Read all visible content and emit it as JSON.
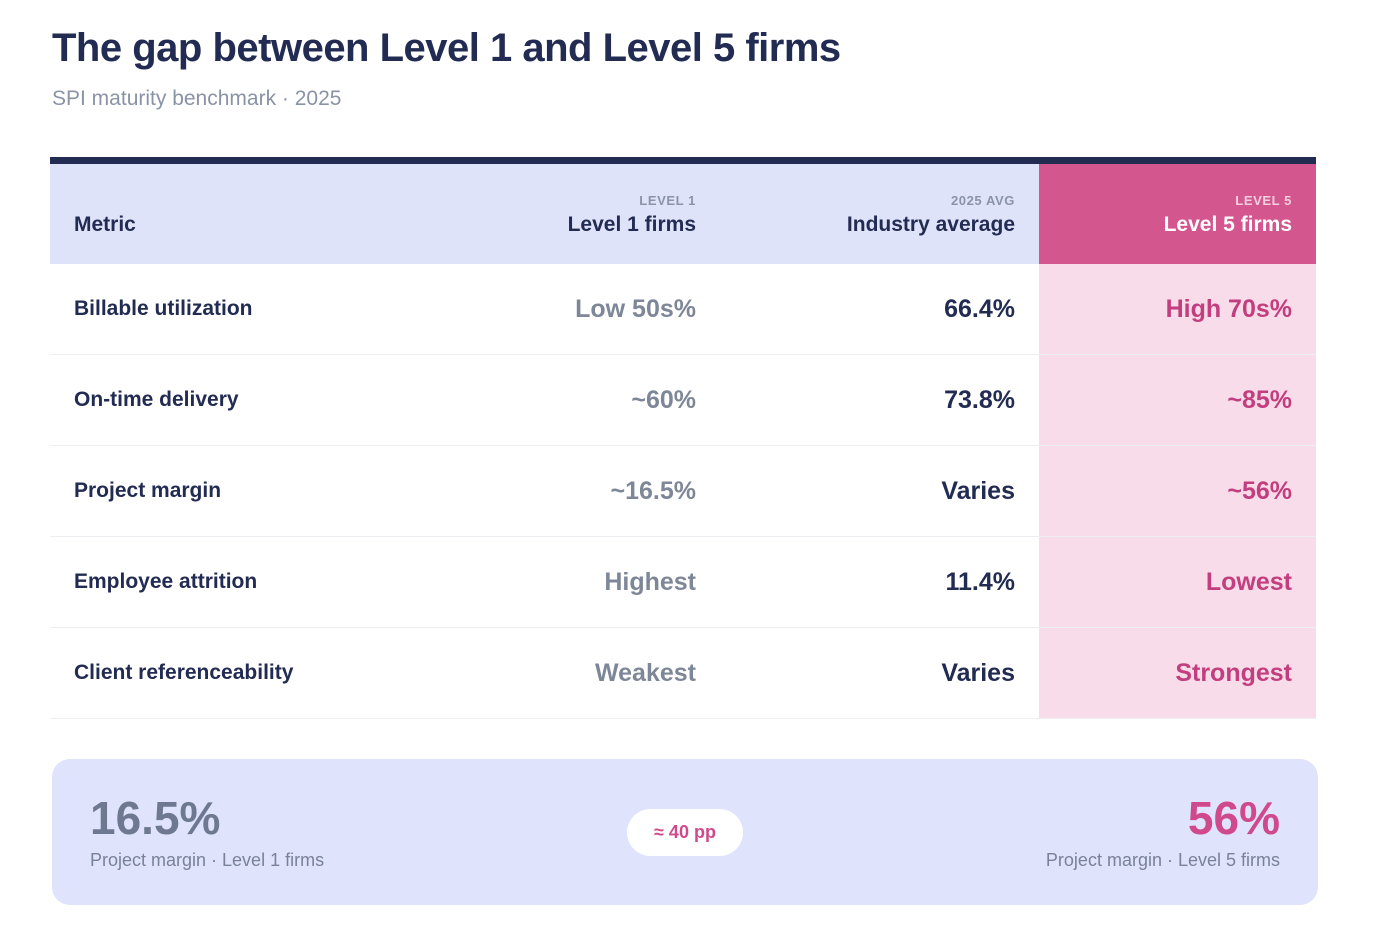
{
  "page": {
    "title": "The gap between Level 1 and Level 5 firms",
    "subtitle": "SPI maturity benchmark · 2025"
  },
  "table": {
    "header": {
      "metric_label": "Metric",
      "level1_kicker": "LEVEL 1",
      "level1_label": "Level 1 firms",
      "avg_kicker": "2025 AVG",
      "avg_label": "Industry average",
      "level5_kicker": "LEVEL 5",
      "level5_label": "Level 5 firms"
    }
  },
  "summary": {
    "left_value": "16.5%",
    "left_label": "Project margin · Level 1 firms",
    "pill_label": "≈ 40 pp",
    "right_value": "56%",
    "right_label": "Project margin · Level 5 firms"
  },
  "colors": {
    "navy": "#222b52",
    "header_lavender": "#dfe3fa",
    "level5_header_pink": "#d4568f",
    "level5_column_pink": "#f8dce9",
    "level5_text_pink": "#c23e7e",
    "level1_value_slate": "#7e8798",
    "summary_card_lavender": "#dfe3fb",
    "pill_text_pink": "#d0498c"
  },
  "chart_data": {
    "type": "table",
    "title": "The gap between Level 1 and Level 5 firms",
    "subtitle": "SPI maturity benchmark · 2025",
    "columns": [
      "Metric",
      "Level 1 firms",
      "Industry average",
      "Level 5 firms"
    ],
    "column_kickers": [
      "",
      "LEVEL 1",
      "2025 AVG",
      "LEVEL 5"
    ],
    "rows": [
      [
        "Billable utilization",
        "Low 50s%",
        "66.4%",
        "High 70s%"
      ],
      [
        "On-time delivery",
        "~60%",
        "73.8%",
        "~85%"
      ],
      [
        "Project margin",
        "~16.5%",
        "Varies",
        "~56%"
      ],
      [
        "Employee attrition",
        "Highest",
        "11.4%",
        "Lowest"
      ],
      [
        "Client referenceability",
        "Weakest",
        "Varies",
        "Strongest"
      ]
    ],
    "callout": {
      "level1_value": "16.5%",
      "level1_label": "Project margin · Level 1 firms",
      "gap": "≈ 40 pp",
      "level5_value": "56%",
      "level5_label": "Project margin · Level 5 firms"
    }
  }
}
